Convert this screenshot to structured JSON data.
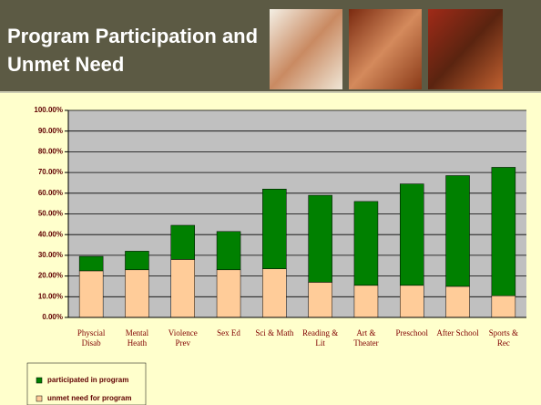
{
  "chart_data": {
    "type": "bar",
    "stacked": true,
    "title": "Program Participation and Unmet Need",
    "categories": [
      "Physcial Disab",
      "Mental Heath",
      "Violence Prev",
      "Sex Ed",
      "Sci & Math",
      "Reading & Lit",
      "Art & Theater",
      "Preschool",
      "After School",
      "Sports & Rec"
    ],
    "series": [
      {
        "name": "participated in program",
        "color": "#008000",
        "values": [
          7,
          9,
          16.5,
          18.5,
          38.5,
          42,
          40.5,
          49,
          53.5,
          62
        ]
      },
      {
        "name": "unmet need for program",
        "color": "#ffcc99",
        "values": [
          22.5,
          23,
          28,
          23,
          23.5,
          17,
          15.5,
          15.5,
          15,
          10.5
        ]
      }
    ],
    "ylim": [
      0,
      100
    ],
    "yticks": [
      {
        "value": 0,
        "label": "0.00%"
      },
      {
        "value": 10,
        "label": "10.00%"
      },
      {
        "value": 20,
        "label": "20.00%"
      },
      {
        "value": 30,
        "label": "30.00%"
      },
      {
        "value": 40,
        "label": "40.00%"
      },
      {
        "value": 50,
        "label": "50.00%"
      },
      {
        "value": 60,
        "label": "60.00%"
      },
      {
        "value": 70,
        "label": "70.00%"
      },
      {
        "value": 80,
        "label": "80.00%"
      },
      {
        "value": 90,
        "label": "90.00%"
      },
      {
        "value": 100,
        "label": "100.00%"
      }
    ],
    "grid": true
  }
}
